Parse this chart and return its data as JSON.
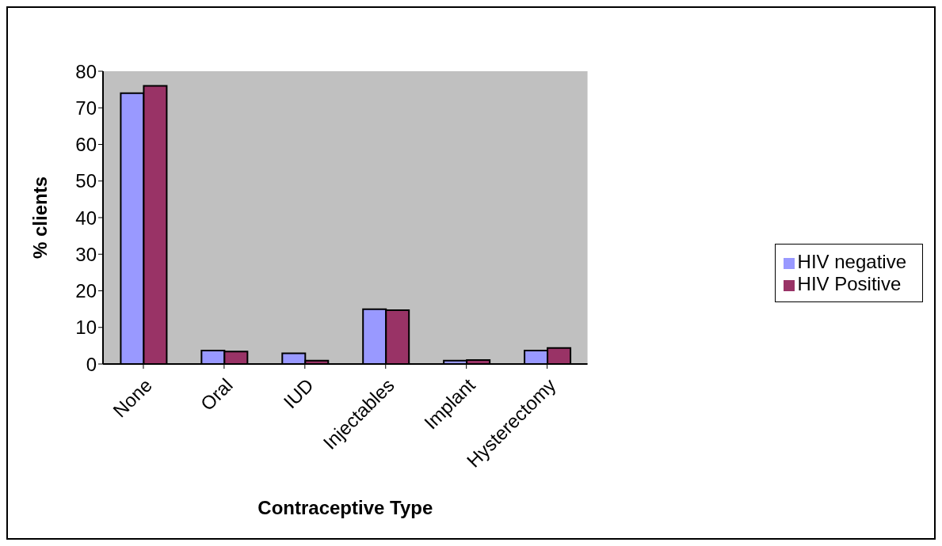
{
  "chart_data": {
    "type": "bar",
    "xlabel": "Contraceptive Type",
    "ylabel": "% clients",
    "categories": [
      "None",
      "Oral",
      "IUD",
      "Injectables",
      "Implant",
      "Hysterectomy"
    ],
    "series": [
      {
        "name": "HIV negative",
        "color": "#9999ff",
        "values": [
          74,
          3.7,
          2.9,
          15,
          0.9,
          3.7
        ]
      },
      {
        "name": "HIV Positive",
        "color": "#993366",
        "values": [
          76,
          3.4,
          0.9,
          14.7,
          1.1,
          4.4
        ]
      }
    ],
    "ylim": [
      0,
      80
    ],
    "yticks": [
      0,
      10,
      20,
      30,
      40,
      50,
      60,
      70,
      80
    ],
    "legend": "right"
  }
}
